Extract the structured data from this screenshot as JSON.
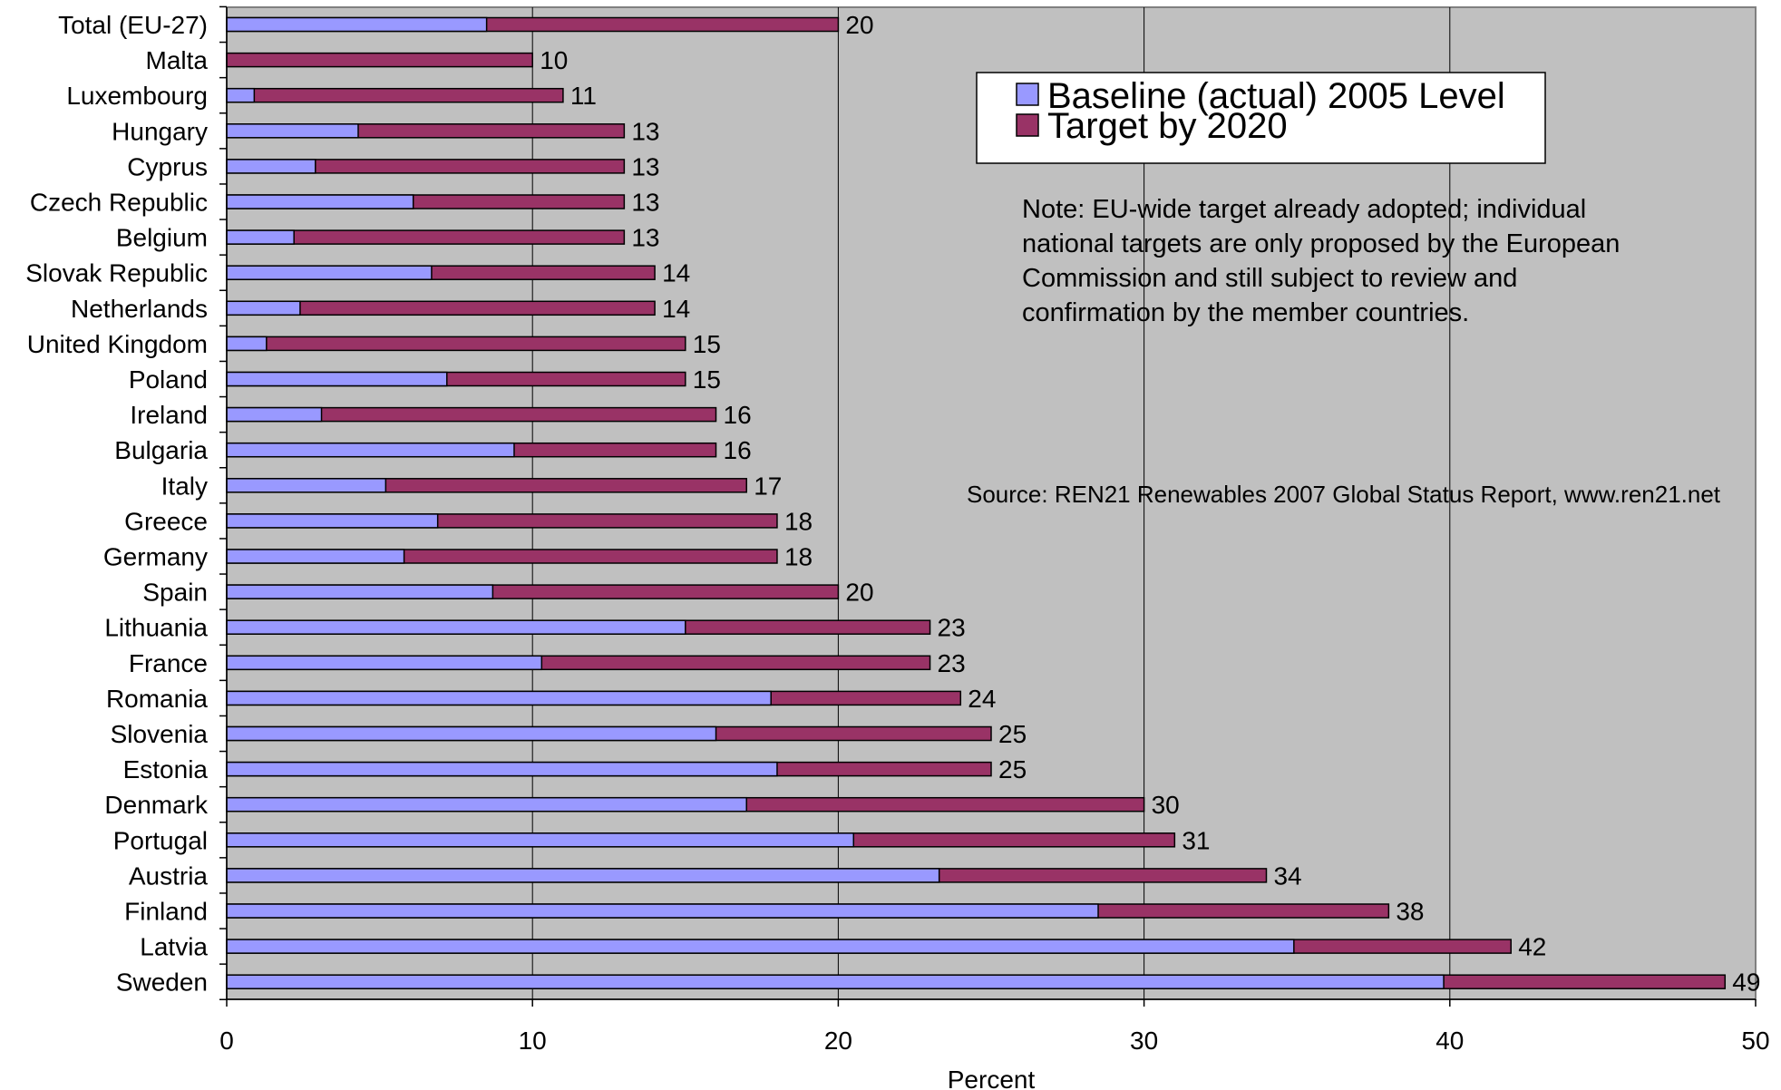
{
  "chart_data": {
    "type": "bar",
    "orientation": "horizontal",
    "stacked": "overlay",
    "categories": [
      "Total (EU-27)",
      "Malta",
      "Luxembourg",
      "Hungary",
      "Cyprus",
      "Czech Republic",
      "Belgium",
      "Slovak Republic",
      "Netherlands",
      "United Kingdom",
      "Poland",
      "Ireland",
      "Bulgaria",
      "Italy",
      "Greece",
      "Germany",
      "Spain",
      "Lithuania",
      "France",
      "Romania",
      "Slovenia",
      "Estonia",
      "Denmark",
      "Portugal",
      "Austria",
      "Finland",
      "Latvia",
      "Sweden"
    ],
    "series": [
      {
        "name": "Baseline (actual) 2005 Level",
        "color": "#9999ff",
        "values": [
          8.5,
          0,
          0.9,
          4.3,
          2.9,
          6.1,
          2.2,
          6.7,
          2.4,
          1.3,
          7.2,
          3.1,
          9.4,
          5.2,
          6.9,
          5.8,
          8.7,
          15.0,
          10.3,
          17.8,
          16.0,
          18.0,
          17.0,
          20.5,
          23.3,
          28.5,
          34.9,
          39.8
        ]
      },
      {
        "name": "Target by 2020",
        "color": "#993366",
        "values": [
          20,
          10,
          11,
          13,
          13,
          13,
          13,
          14,
          14,
          15,
          15,
          16,
          16,
          17,
          18,
          18,
          20,
          23,
          23,
          24,
          25,
          25,
          30,
          31,
          34,
          38,
          42,
          49
        ]
      }
    ],
    "data_labels": [
      "20",
      "10",
      "11",
      "13",
      "13",
      "13",
      "13",
      "14",
      "14",
      "15",
      "15",
      "16",
      "16",
      "17",
      "18",
      "18",
      "20",
      "23",
      "23",
      "24",
      "25",
      "25",
      "30",
      "31",
      "34",
      "38",
      "42",
      "49"
    ],
    "xlim": [
      0,
      50
    ],
    "x_ticks": [
      "0",
      "10",
      "20",
      "30",
      "40",
      "50"
    ],
    "xlabel": "Percent",
    "ylabel": "",
    "grid": "vertical",
    "legend": "top-right",
    "plot_background": "#c0c0c0",
    "note_lines": [
      "Note: EU-wide target already adopted; individual",
      "national targets are only proposed by the European",
      "Commission and still subject to review and",
      "confirmation by the member countries."
    ],
    "source": "Source: REN21 Renewables 2007 Global Status Report, www.ren21.net"
  }
}
